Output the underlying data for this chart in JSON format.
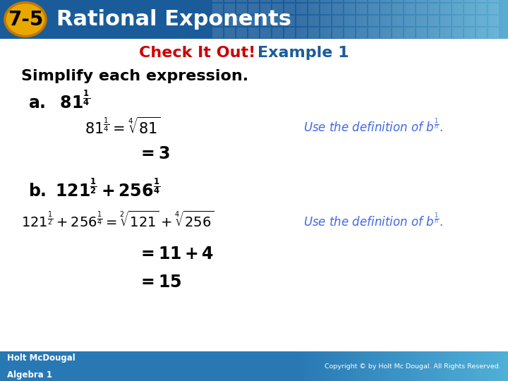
{
  "title_badge": "7-5",
  "title_text": "Rational Exponents",
  "header_bg_left": "#1A5C9A",
  "header_bg_right": "#5AAED4",
  "badge_bg": "#E8A800",
  "body_bg": "#FFFFFF",
  "check_it_out_color": "#CC0000",
  "example_color": "#1A5C9A",
  "subtitle_color": "#000000",
  "annotation_color": "#4169E1",
  "footer_bg": "#2878B4",
  "copyright_text": "Copyright © by Holt Mc Dougal. All Rights Reserved."
}
